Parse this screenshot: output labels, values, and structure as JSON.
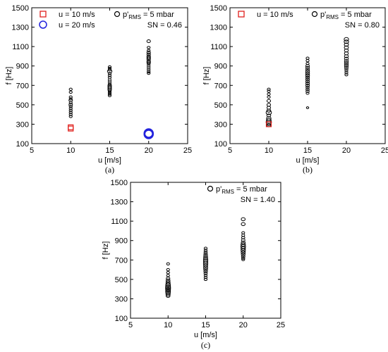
{
  "colors": {
    "black": "#000000",
    "red": "#e0201c",
    "blue": "#2222dd"
  },
  "chart_data": [
    {
      "type": "scatter",
      "panel_label": "(a)",
      "xlabel": "u [m/s]",
      "ylabel": "f [Hz]",
      "xlim": [
        5,
        25
      ],
      "ylim": [
        100,
        1500
      ],
      "xticks": [
        "5",
        "10",
        "15",
        "20",
        "25"
      ],
      "yticks": [
        "100",
        "300",
        "500",
        "700",
        "900",
        "1100",
        "1300",
        "1500"
      ],
      "legend": {
        "items": [
          {
            "label": "u = 10 m/s",
            "marker": "square",
            "color": "#e0201c"
          },
          {
            "label": "u = 20 m/s",
            "marker": "circle",
            "color": "#2222dd"
          }
        ],
        "ref_label_prefix": "p'",
        "ref_label_sub": "RMS",
        "ref_label_suffix": " = 5 mbar",
        "sn_label": "SN = 0.46"
      },
      "series": [
        {
          "color": "#000000",
          "points": [
            {
              "x": 10,
              "y": 660,
              "s": 1
            },
            {
              "x": 10,
              "y": 630,
              "s": 1
            },
            {
              "x": 10,
              "y": 580,
              "s": 1
            },
            {
              "x": 10,
              "y": 560,
              "s": 1
            },
            {
              "x": 10,
              "y": 545,
              "s": 1.2
            },
            {
              "x": 10,
              "y": 520,
              "s": 1
            },
            {
              "x": 10,
              "y": 500,
              "s": 1.2
            },
            {
              "x": 10,
              "y": 480,
              "s": 1
            },
            {
              "x": 10,
              "y": 460,
              "s": 1
            },
            {
              "x": 10,
              "y": 440,
              "s": 1
            },
            {
              "x": 10,
              "y": 420,
              "s": 1
            },
            {
              "x": 10,
              "y": 400,
              "s": 1
            },
            {
              "x": 10,
              "y": 380,
              "s": 1
            },
            {
              "x": 15,
              "y": 890,
              "s": 1
            },
            {
              "x": 15,
              "y": 875,
              "s": 1
            },
            {
              "x": 15,
              "y": 860,
              "s": 1
            },
            {
              "x": 15,
              "y": 845,
              "s": 1.5
            },
            {
              "x": 15,
              "y": 820,
              "s": 1
            },
            {
              "x": 15,
              "y": 800,
              "s": 1
            },
            {
              "x": 15,
              "y": 780,
              "s": 1
            },
            {
              "x": 15,
              "y": 755,
              "s": 1
            },
            {
              "x": 15,
              "y": 735,
              "s": 1
            },
            {
              "x": 15,
              "y": 715,
              "s": 1
            },
            {
              "x": 15,
              "y": 700,
              "s": 1.2
            },
            {
              "x": 15,
              "y": 685,
              "s": 1.2
            },
            {
              "x": 15,
              "y": 670,
              "s": 1.2
            },
            {
              "x": 15,
              "y": 655,
              "s": 1.2
            },
            {
              "x": 15,
              "y": 640,
              "s": 1
            },
            {
              "x": 15,
              "y": 625,
              "s": 1
            },
            {
              "x": 15,
              "y": 610,
              "s": 1
            },
            {
              "x": 15,
              "y": 595,
              "s": 1
            },
            {
              "x": 20,
              "y": 1155,
              "s": 1.2
            },
            {
              "x": 20,
              "y": 1090,
              "s": 1
            },
            {
              "x": 20,
              "y": 1060,
              "s": 1
            },
            {
              "x": 20,
              "y": 1040,
              "s": 1.2
            },
            {
              "x": 20,
              "y": 1020,
              "s": 1.2
            },
            {
              "x": 20,
              "y": 1000,
              "s": 1.2
            },
            {
              "x": 20,
              "y": 985,
              "s": 1.2
            },
            {
              "x": 20,
              "y": 970,
              "s": 1.2
            },
            {
              "x": 20,
              "y": 950,
              "s": 1.2
            },
            {
              "x": 20,
              "y": 935,
              "s": 1.2
            },
            {
              "x": 20,
              "y": 920,
              "s": 1
            },
            {
              "x": 20,
              "y": 900,
              "s": 1
            },
            {
              "x": 20,
              "y": 880,
              "s": 1
            },
            {
              "x": 20,
              "y": 860,
              "s": 1
            },
            {
              "x": 20,
              "y": 840,
              "s": 1
            },
            {
              "x": 20,
              "y": 825,
              "s": 1
            }
          ]
        },
        {
          "color": "#e0201c",
          "marker": "square",
          "points": [
            {
              "x": 10,
              "y": 268
            },
            {
              "x": 10,
              "y": 255
            }
          ]
        },
        {
          "color": "#2222dd",
          "marker": "circle",
          "points": [
            {
              "x": 20,
              "y": 205
            },
            {
              "x": 20,
              "y": 198
            }
          ]
        }
      ]
    },
    {
      "type": "scatter",
      "panel_label": "(b)",
      "xlabel": "u [m/s]",
      "ylabel": "f [Hz]",
      "xlim": [
        5,
        25
      ],
      "ylim": [
        100,
        1500
      ],
      "xticks": [
        "5",
        "10",
        "15",
        "20",
        "25"
      ],
      "yticks": [
        "100",
        "300",
        "500",
        "700",
        "900",
        "1100",
        "1300",
        "1500"
      ],
      "legend": {
        "items": [
          {
            "label": "u = 10 m/s",
            "marker": "square",
            "color": "#e0201c"
          }
        ],
        "ref_label_prefix": "p'",
        "ref_label_sub": "RMS",
        "ref_label_suffix": " = 5 mbar",
        "sn_label": "SN = 0.80"
      },
      "series": [
        {
          "color": "#000000",
          "points": [
            {
              "x": 10,
              "y": 660,
              "s": 1
            },
            {
              "x": 10,
              "y": 640,
              "s": 1
            },
            {
              "x": 10,
              "y": 610,
              "s": 1
            },
            {
              "x": 10,
              "y": 580,
              "s": 1
            },
            {
              "x": 10,
              "y": 540,
              "s": 1.2
            },
            {
              "x": 10,
              "y": 500,
              "s": 1.2
            },
            {
              "x": 10,
              "y": 470,
              "s": 1.2
            },
            {
              "x": 10,
              "y": 440,
              "s": 1.3
            },
            {
              "x": 10,
              "y": 420,
              "s": 1.8
            },
            {
              "x": 10,
              "y": 390,
              "s": 1.3
            },
            {
              "x": 10,
              "y": 360,
              "s": 1.5
            },
            {
              "x": 10,
              "y": 340,
              "s": 1.6
            },
            {
              "x": 10,
              "y": 320,
              "s": 1.8
            },
            {
              "x": 10,
              "y": 305,
              "s": 1.6
            },
            {
              "x": 10,
              "y": 290,
              "s": 1.4
            },
            {
              "x": 15,
              "y": 980,
              "s": 1
            },
            {
              "x": 15,
              "y": 955,
              "s": 1
            },
            {
              "x": 15,
              "y": 925,
              "s": 1
            },
            {
              "x": 15,
              "y": 900,
              "s": 1.2
            },
            {
              "x": 15,
              "y": 880,
              "s": 1.2
            },
            {
              "x": 15,
              "y": 860,
              "s": 1.2
            },
            {
              "x": 15,
              "y": 840,
              "s": 1.3
            },
            {
              "x": 15,
              "y": 820,
              "s": 1.3
            },
            {
              "x": 15,
              "y": 800,
              "s": 1.3
            },
            {
              "x": 15,
              "y": 780,
              "s": 1.2
            },
            {
              "x": 15,
              "y": 760,
              "s": 1.2
            },
            {
              "x": 15,
              "y": 740,
              "s": 1.2
            },
            {
              "x": 15,
              "y": 720,
              "s": 1.2
            },
            {
              "x": 15,
              "y": 700,
              "s": 1.2
            },
            {
              "x": 15,
              "y": 680,
              "s": 1.1
            },
            {
              "x": 15,
              "y": 660,
              "s": 1.1
            },
            {
              "x": 15,
              "y": 640,
              "s": 1.1
            },
            {
              "x": 15,
              "y": 620,
              "s": 1
            },
            {
              "x": 15,
              "y": 470,
              "s": 0.8
            },
            {
              "x": 20,
              "y": 1175,
              "s": 1.5
            },
            {
              "x": 20,
              "y": 1150,
              "s": 1.5
            },
            {
              "x": 20,
              "y": 1120,
              "s": 1.4
            },
            {
              "x": 20,
              "y": 1090,
              "s": 1.4
            },
            {
              "x": 20,
              "y": 1060,
              "s": 1.3
            },
            {
              "x": 20,
              "y": 1030,
              "s": 1.3
            },
            {
              "x": 20,
              "y": 1000,
              "s": 1.3
            },
            {
              "x": 20,
              "y": 975,
              "s": 1.3
            },
            {
              "x": 20,
              "y": 950,
              "s": 1.3
            },
            {
              "x": 20,
              "y": 930,
              "s": 1.3
            },
            {
              "x": 20,
              "y": 910,
              "s": 1.3
            },
            {
              "x": 20,
              "y": 890,
              "s": 1.2
            },
            {
              "x": 20,
              "y": 870,
              "s": 1.1
            },
            {
              "x": 20,
              "y": 850,
              "s": 1
            },
            {
              "x": 20,
              "y": 830,
              "s": 1
            },
            {
              "x": 20,
              "y": 810,
              "s": 1
            }
          ]
        },
        {
          "color": "#e0201c",
          "marker": "square",
          "points": [
            {
              "x": 10,
              "y": 300
            }
          ]
        }
      ]
    },
    {
      "type": "scatter",
      "panel_label": "(c)",
      "xlabel": "u [m/s]",
      "ylabel": "f [Hz]",
      "xlim": [
        5,
        25
      ],
      "ylim": [
        100,
        1500
      ],
      "xticks": [
        "5",
        "10",
        "15",
        "20",
        "25"
      ],
      "yticks": [
        "100",
        "300",
        "500",
        "700",
        "900",
        "1100",
        "1300",
        "1500"
      ],
      "legend": {
        "items": [],
        "ref_label_prefix": "p'",
        "ref_label_sub": "RMS",
        "ref_label_suffix": " = 5 mbar",
        "sn_label": "SN = 1.40"
      },
      "series": [
        {
          "color": "#000000",
          "points": [
            {
              "x": 10,
              "y": 660,
              "s": 1
            },
            {
              "x": 10,
              "y": 600,
              "s": 1
            },
            {
              "x": 10,
              "y": 570,
              "s": 1
            },
            {
              "x": 10,
              "y": 540,
              "s": 1
            },
            {
              "x": 10,
              "y": 510,
              "s": 1.2
            },
            {
              "x": 10,
              "y": 490,
              "s": 1.3
            },
            {
              "x": 10,
              "y": 470,
              "s": 1.4
            },
            {
              "x": 10,
              "y": 450,
              "s": 1.5
            },
            {
              "x": 10,
              "y": 435,
              "s": 1.6
            },
            {
              "x": 10,
              "y": 420,
              "s": 1.7
            },
            {
              "x": 10,
              "y": 405,
              "s": 1.7
            },
            {
              "x": 10,
              "y": 390,
              "s": 1.6
            },
            {
              "x": 10,
              "y": 375,
              "s": 1.6
            },
            {
              "x": 10,
              "y": 360,
              "s": 1.5
            },
            {
              "x": 10,
              "y": 345,
              "s": 1.4
            },
            {
              "x": 10,
              "y": 330,
              "s": 1.3
            },
            {
              "x": 15,
              "y": 820,
              "s": 1
            },
            {
              "x": 15,
              "y": 800,
              "s": 1
            },
            {
              "x": 15,
              "y": 780,
              "s": 1.1
            },
            {
              "x": 15,
              "y": 760,
              "s": 1.2
            },
            {
              "x": 15,
              "y": 740,
              "s": 1.3
            },
            {
              "x": 15,
              "y": 720,
              "s": 1.4
            },
            {
              "x": 15,
              "y": 700,
              "s": 1.5
            },
            {
              "x": 15,
              "y": 680,
              "s": 1.5
            },
            {
              "x": 15,
              "y": 660,
              "s": 1.5
            },
            {
              "x": 15,
              "y": 640,
              "s": 1.4
            },
            {
              "x": 15,
              "y": 620,
              "s": 1.4
            },
            {
              "x": 15,
              "y": 600,
              "s": 1.3
            },
            {
              "x": 15,
              "y": 580,
              "s": 1.2
            },
            {
              "x": 15,
              "y": 560,
              "s": 1.1
            },
            {
              "x": 15,
              "y": 540,
              "s": 1
            },
            {
              "x": 15,
              "y": 520,
              "s": 1
            },
            {
              "x": 15,
              "y": 500,
              "s": 1
            },
            {
              "x": 20,
              "y": 1120,
              "s": 1.3
            },
            {
              "x": 20,
              "y": 1070,
              "s": 1.3
            },
            {
              "x": 20,
              "y": 980,
              "s": 1
            },
            {
              "x": 20,
              "y": 955,
              "s": 1
            },
            {
              "x": 20,
              "y": 930,
              "s": 1.1
            },
            {
              "x": 20,
              "y": 905,
              "s": 1.2
            },
            {
              "x": 20,
              "y": 880,
              "s": 1.3
            },
            {
              "x": 20,
              "y": 860,
              "s": 1.5
            },
            {
              "x": 20,
              "y": 840,
              "s": 1.6
            },
            {
              "x": 20,
              "y": 820,
              "s": 1.5
            },
            {
              "x": 20,
              "y": 800,
              "s": 1.5
            },
            {
              "x": 20,
              "y": 780,
              "s": 1.4
            },
            {
              "x": 20,
              "y": 760,
              "s": 1.3
            },
            {
              "x": 20,
              "y": 740,
              "s": 1.2
            },
            {
              "x": 20,
              "y": 720,
              "s": 1.1
            },
            {
              "x": 20,
              "y": 705,
              "s": 1
            }
          ]
        }
      ]
    }
  ]
}
